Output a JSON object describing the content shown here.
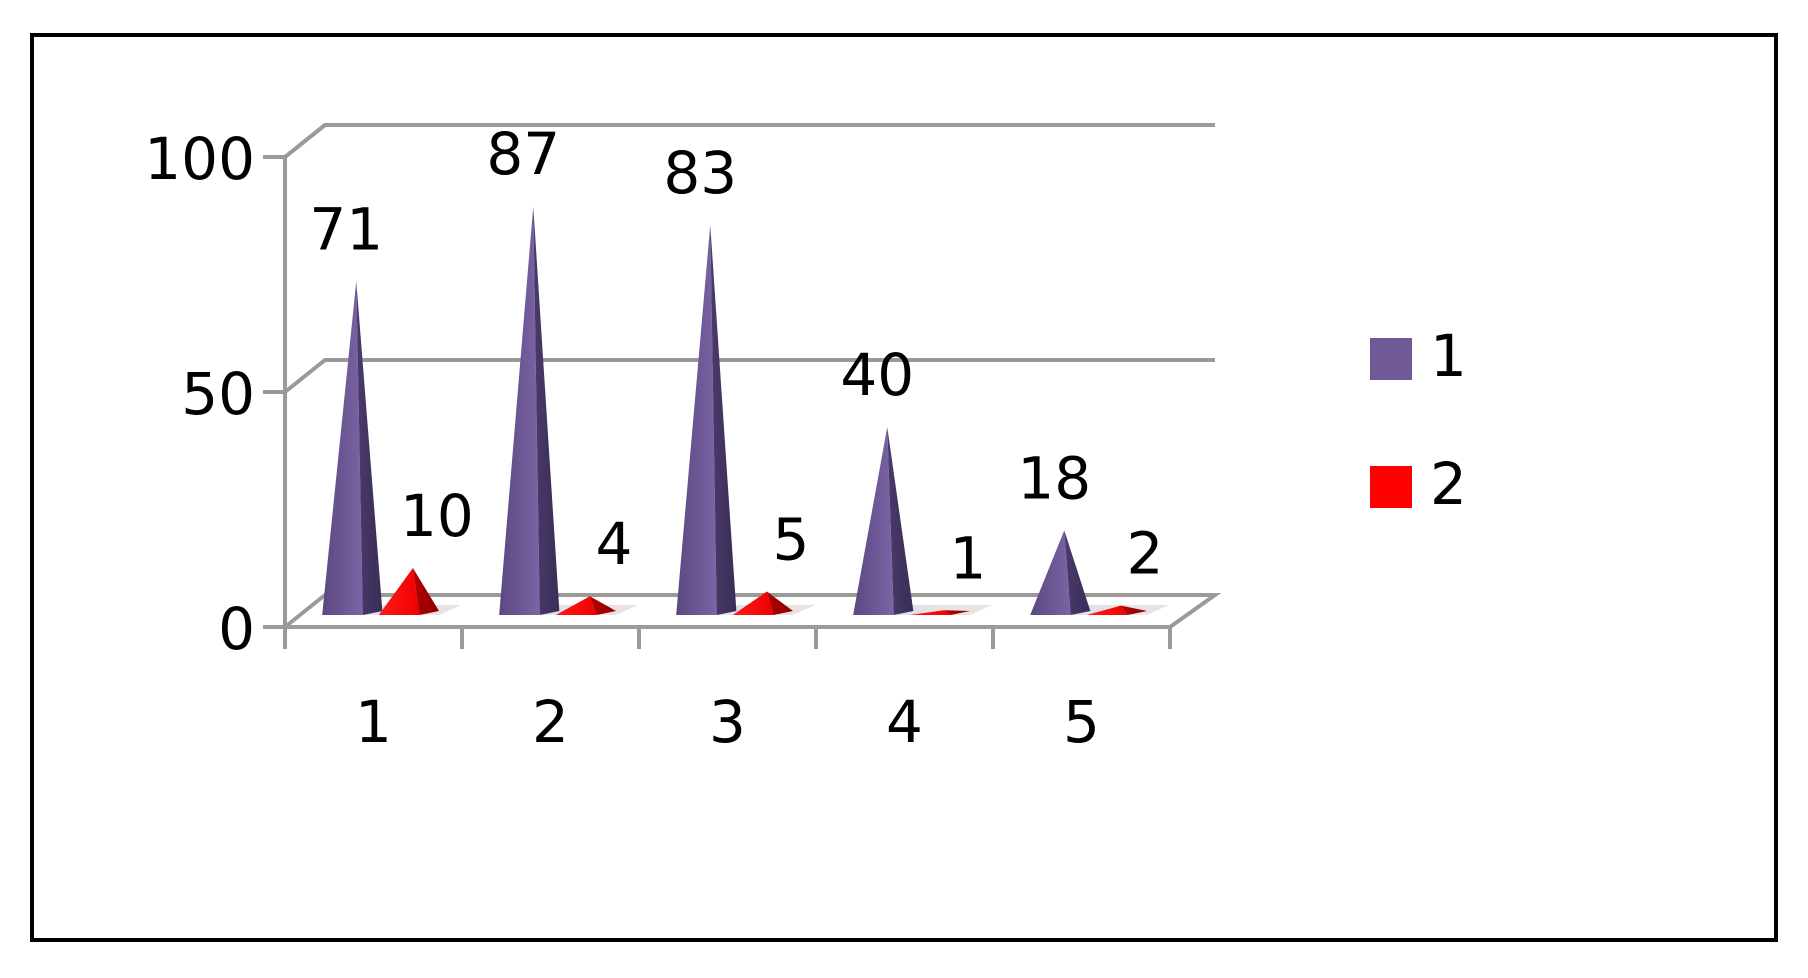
{
  "chart_data": {
    "type": "bar",
    "style": "3d-pyramid",
    "categories": [
      "1",
      "2",
      "3",
      "4",
      "5"
    ],
    "series": [
      {
        "name": "1",
        "color": "#6f5a97",
        "values": [
          71,
          87,
          83,
          40,
          18
        ]
      },
      {
        "name": "2",
        "color": "#ff0000",
        "values": [
          10,
          4,
          5,
          1,
          2
        ]
      }
    ],
    "data_labels": [
      [
        "71",
        "87",
        "83",
        "40",
        "18"
      ],
      [
        "10",
        "4",
        "5",
        "1",
        "2"
      ]
    ],
    "yticks": [
      "0",
      "50",
      "100"
    ],
    "ylim": [
      0,
      100
    ],
    "grid": true,
    "legend": "right",
    "title": "",
    "xlabel": "",
    "ylabel": ""
  }
}
